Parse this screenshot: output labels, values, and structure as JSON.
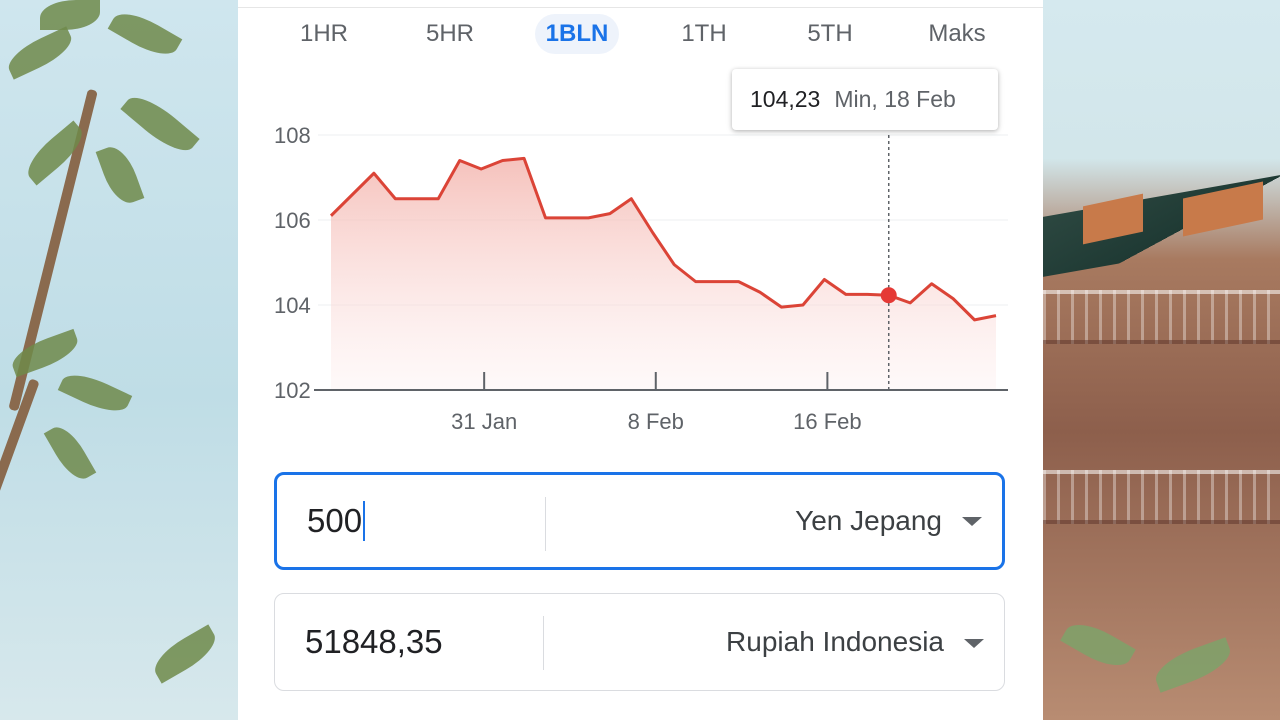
{
  "tabs": [
    {
      "label": "1HR",
      "active": false
    },
    {
      "label": "5HR",
      "active": false
    },
    {
      "label": "1BLN",
      "active": true
    },
    {
      "label": "1TH",
      "active": false
    },
    {
      "label": "5TH",
      "active": false
    },
    {
      "label": "Maks",
      "active": false
    }
  ],
  "tooltip": {
    "value": "104,23",
    "date": "Min, 18 Feb"
  },
  "chart_data": {
    "type": "area",
    "title": "",
    "xlabel": "",
    "ylabel": "",
    "ylim": [
      102,
      108
    ],
    "yticks": [
      "108",
      "106",
      "104",
      "102"
    ],
    "xticks": [
      "31 Jan",
      "8 Feb",
      "16 Feb"
    ],
    "grid": true,
    "line_color": "#db4437",
    "highlight_index": 26,
    "series": [
      {
        "values": [
          106.1,
          106.6,
          107.1,
          106.5,
          106.5,
          106.5,
          107.4,
          107.2,
          107.4,
          107.45,
          106.05,
          106.05,
          106.05,
          106.15,
          106.5,
          105.7,
          104.95,
          104.55,
          104.55,
          104.55,
          104.3,
          103.95,
          104.0,
          104.6,
          104.25,
          104.25,
          104.23,
          104.05,
          104.5,
          104.15,
          103.65,
          103.75
        ]
      }
    ]
  },
  "converter": {
    "from": {
      "amount": "500",
      "currency": "Yen Jepang"
    },
    "to": {
      "amount": "51848,35",
      "currency": "Rupiah Indonesia"
    }
  }
}
